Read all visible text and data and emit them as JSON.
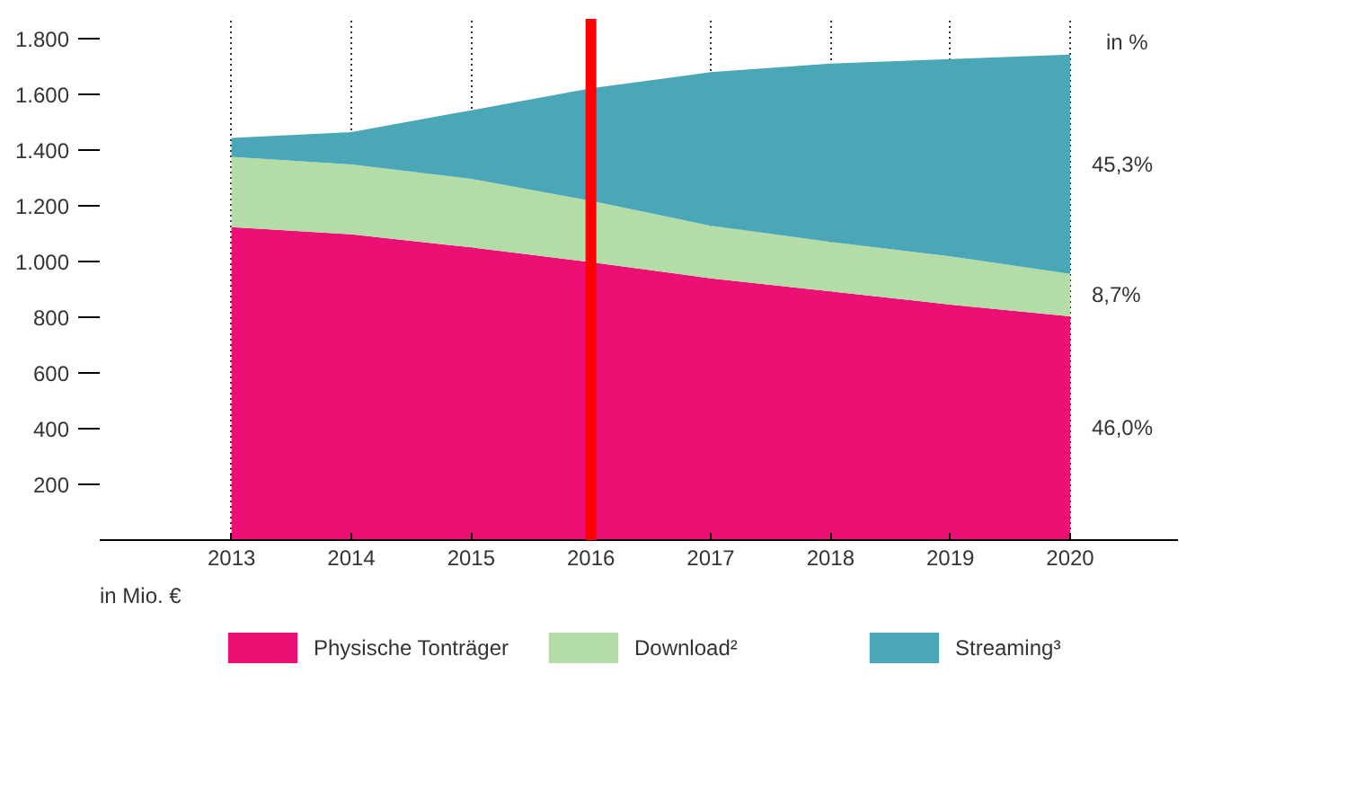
{
  "chart_data": {
    "type": "area",
    "stacked": true,
    "x": [
      2013,
      2014,
      2015,
      2016,
      2017,
      2018,
      2019,
      2020
    ],
    "series": [
      {
        "name": "Physische Tonträger",
        "color": "#ec0f74",
        "values": [
          1123,
          1097,
          1050,
          997,
          939,
          892,
          845,
          803
        ]
      },
      {
        "name": "Download²",
        "color": "#b3dca6",
        "values": [
          252,
          251,
          246,
          220,
          189,
          178,
          173,
          152
        ]
      },
      {
        "name": "Streaming³",
        "color": "#4aa7b8",
        "values": [
          68,
          116,
          246,
          404,
          551,
          640,
          708,
          787
        ]
      }
    ],
    "xlim": [
      2011.9,
      2020.9
    ],
    "ylim": [
      0,
      1870
    ],
    "xticks": [
      2013,
      2014,
      2015,
      2016,
      2017,
      2018,
      2019,
      2020
    ],
    "yticks": [
      {
        "value": 200,
        "label": "200"
      },
      {
        "value": 400,
        "label": "400"
      },
      {
        "value": 600,
        "label": "600"
      },
      {
        "value": 800,
        "label": "800"
      },
      {
        "value": 1000,
        "label": "1.000"
      },
      {
        "value": 1200,
        "label": "1.200"
      },
      {
        "value": 1400,
        "label": "1.400"
      },
      {
        "value": 1600,
        "label": "1.600"
      },
      {
        "value": 1800,
        "label": "1.800"
      }
    ],
    "grid": "x",
    "legend": "bottom",
    "ref_lines": [
      {
        "axis": "x",
        "value": 2016,
        "color": "#ff0000"
      }
    ],
    "annotations": [
      "in Mio. €",
      "in %",
      "46,0%",
      "8,7%",
      "45,3%"
    ]
  }
}
